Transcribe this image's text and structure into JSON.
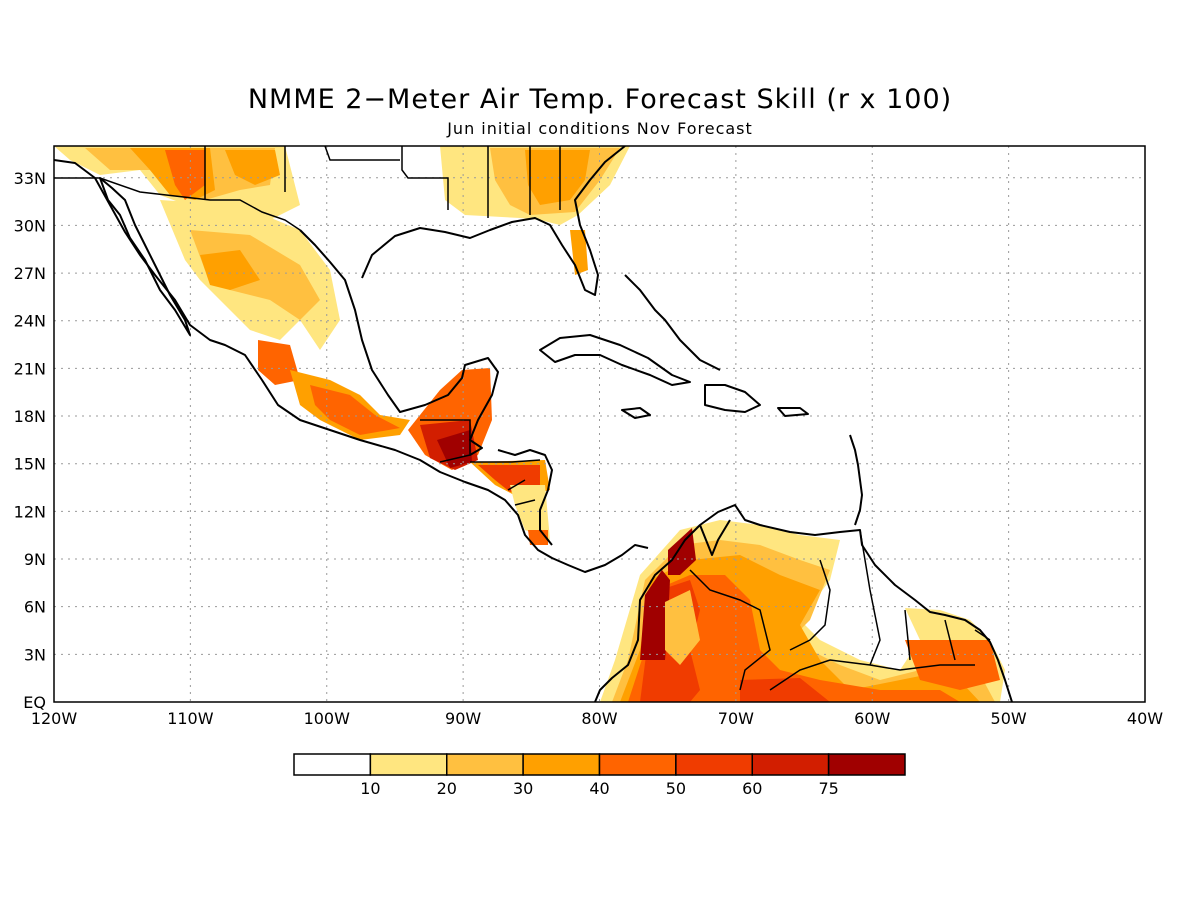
{
  "title": "NMME 2−Meter Air Temp. Forecast Skill (r x 100)",
  "subtitle": "Jun initial conditions  Nov Forecast",
  "map": {
    "region": "Central America and Caribbean",
    "lon_range": [
      -120,
      -40
    ],
    "lat_range": [
      0,
      35
    ],
    "x_ticks": [
      "120W",
      "110W",
      "100W",
      "90W",
      "80W",
      "70W",
      "60W",
      "50W",
      "40W"
    ],
    "y_ticks": [
      "EQ",
      "3N",
      "6N",
      "9N",
      "12N",
      "15N",
      "18N",
      "21N",
      "24N",
      "27N",
      "30N",
      "33N"
    ],
    "grid": "dotted"
  },
  "colorbar": {
    "labels": [
      "10",
      "20",
      "30",
      "40",
      "50",
      "60",
      "75"
    ],
    "colors": [
      "#ffffff",
      "#ffe680",
      "#ffc040",
      "#ffa000",
      "#ff6400",
      "#f03c00",
      "#d21e00",
      "#a00000"
    ]
  },
  "colors": {
    "coast": "#000000",
    "grid": "#9a9a9a"
  }
}
